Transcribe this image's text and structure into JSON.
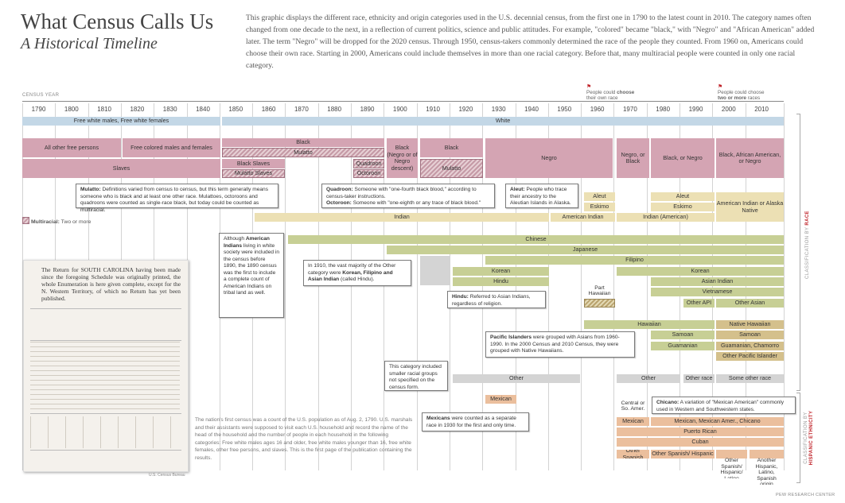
{
  "title": "What Census Calls Us",
  "subtitle": "A Historical Timeline",
  "intro": "This graphic displays the different race, ethnicity and origin categories used in the U.S. decennial census, from the first one in 1790 to the latest count in 2010. The category names often changed from one decade to the next, in a reflection of current politics, science and public attitudes. For example, \"colored\" became \"black,\" with \"Negro\" and \"African American\" added later. The term \"Negro\" will be dropped for the 2020 census. Through 1950, census-takers commonly determined the race of the people they counted. From 1960 on, Americans could choose their own race. Starting in 2000, Americans could include themselves in more than one racial category. Before that, many multiracial people were counted in only one racial category.",
  "census_year_label": "CENSUS YEAR",
  "years": [
    "1790",
    "1800",
    "1810",
    "1820",
    "1830",
    "1840",
    "1850",
    "1860",
    "1870",
    "1880",
    "1890",
    "1900",
    "1910",
    "1920",
    "1930",
    "1940",
    "1950",
    "1960",
    "1970",
    "1980",
    "1990",
    "2000",
    "2010"
  ],
  "flags": {
    "choose_prefix": "People could ",
    "choose_bold": "choose",
    "choose_suffix": "their own race",
    "two_prefix": "People could choose",
    "two_bold": "two or more",
    "two_suffix": "races"
  },
  "bars": {
    "white1": "Free white males, Free white females",
    "white2": "White",
    "all_other_free": "All other free persons",
    "free_colored": "Free colored males and females",
    "slaves": "Slaves",
    "black_1850": "Black",
    "mulatto_1850": "Mulatto",
    "black_slaves": "Black Slaves",
    "mulatto_slaves": "Mulatto Slaves",
    "quadroon": "Quadroon",
    "octoroon": "Octoroon",
    "black_1900": "Black (Negro or of Negro descent)",
    "black_1910": "Black",
    "mulatto_1910": "Mulatto",
    "negro": "Negro",
    "negro_black": "Negro, or Black",
    "black_negro": "Black, or Negro",
    "black_aa": "Black, African American, or Negro",
    "aleut1": "Aleut",
    "eskimo1": "Eskimo",
    "aleut2": "Aleut",
    "eskimo2": "Eskimo",
    "aian": "American Indian or Alaska Native",
    "indian": "Indian",
    "american_indian": "American Indian",
    "indian_american": "Indian (American)",
    "chinese": "Chinese",
    "japanese": "Japanese",
    "filipino": "Filipino",
    "other_1890": "Other",
    "korean1": "Korean",
    "hindu": "Hindu",
    "korean2": "Korean",
    "asian_indian": "Asian Indian",
    "vietnamese": "Vietnamese",
    "other_api": "Other API",
    "other_asian": "Other Asian",
    "part_hawaiian": "Part Hawaiian",
    "hawaiian": "Hawaiian",
    "native_hawaiian": "Native Hawaiian",
    "samoan1": "Samoan",
    "samoan2": "Samoan",
    "guamanian1": "Guamanian",
    "guamanian2": "Guamanian, Chamorro",
    "other_pi": "Other Pacific Islander",
    "other1": "Other",
    "other2": "Other",
    "other_race1": "Other race",
    "some_other_race": "Some other race",
    "mexican1": "Mexican",
    "central_so": "Central or So. Amer.",
    "mexican2": "Mexican",
    "mexican3": "Mexican, Mexican Amer., Chicano",
    "puerto_rican": "Puerto Rican",
    "cuban": "Cuban",
    "other_spanish": "Other Spanish",
    "other_spanish_hispanic": "Other Spanish/ Hispanic",
    "other_sp_hl": "Other Spanish/ Hispanic/ Latino",
    "another": "Another Hispanic, Latino, Spanish origin"
  },
  "notes": {
    "mulatto_b": "Mulatto:",
    "mulatto_t": " Definitions varied from census to census, but this term generally means someone who is black and at least one other race. Mulattoes, octoroons and quadroons were counted as single-race black, but today could be counted as multiracial.",
    "quadroon_b": "Quadroon:",
    "quadroon_t": " Someone with \"one-fourth black blood,\" according to census-taker instructions.",
    "octoroon_b": "Octoroon:",
    "octoroon_t": " Someone with \"one-eighth or any trace of black blood.\"",
    "aleut_b": "Aleut:",
    "aleut_t": " People who trace their ancestry to the Aleutian Islands in Alaska.",
    "ai_1": "Although ",
    "ai_b": "American Indians",
    "ai_2": " living in white society were included in the census before 1890, the 1890 census was the first to include a complete count of American Indians on tribal land as well.",
    "other1910_1": "In 1910, the vast majority of the Other category were ",
    "other1910_b": "Korean, Filipino and Asian Indian",
    "other1910_2": " (called Hindu).",
    "hindu_b": "Hindu:",
    "hindu_t": " Referred to Asian Indians, regardless of religion.",
    "pi_b": "Pacific Islanders",
    "pi_t": " were grouped with Asians from 1960-1990. In the 2000 Census and 2010 Census, they were grouped with Native Hawaiians.",
    "other_cat": "This category included smaller racial groups not specified on the census form.",
    "mexican_b": "Mexicans",
    "mexican_t": " were counted as a separate race in 1930 for the first and only time.",
    "chicano_b": "Chicano:",
    "chicano_t": " A variation of \"Mexican American\" commonly used in Western and Southwestern states."
  },
  "legend": {
    "label": "Multiracial:",
    "text": " Two or more"
  },
  "side_labels": {
    "race_prefix": "CLASSIFICATION BY ",
    "race": "RACE",
    "hisp_prefix": "CLASSIFICATION BY",
    "hisp": "HISPANIC ETHNICITY"
  },
  "document": {
    "text": "The Return for SOUTH CAROLINA having been made since the foregoing Schedule was originally printed, the whole Enumeration is here given complete, except for the N. Western Territory, of which no Return has yet been published.",
    "credit": "U.S. Census Bureau"
  },
  "caption": "The nation's first census was a count of the U.S. population as of Aug. 2, 1790. U.S. marshals and their assistants were supposed to visit each U.S. household and record the name of the head of the household and the number of people in each household in the following categories: Free white males ages 16 and older, free white males younger than 16, free white females, other free persons, and slaves. This is the first page of the publication containing the results.",
  "source": "PEW RESEARCH CENTER"
}
